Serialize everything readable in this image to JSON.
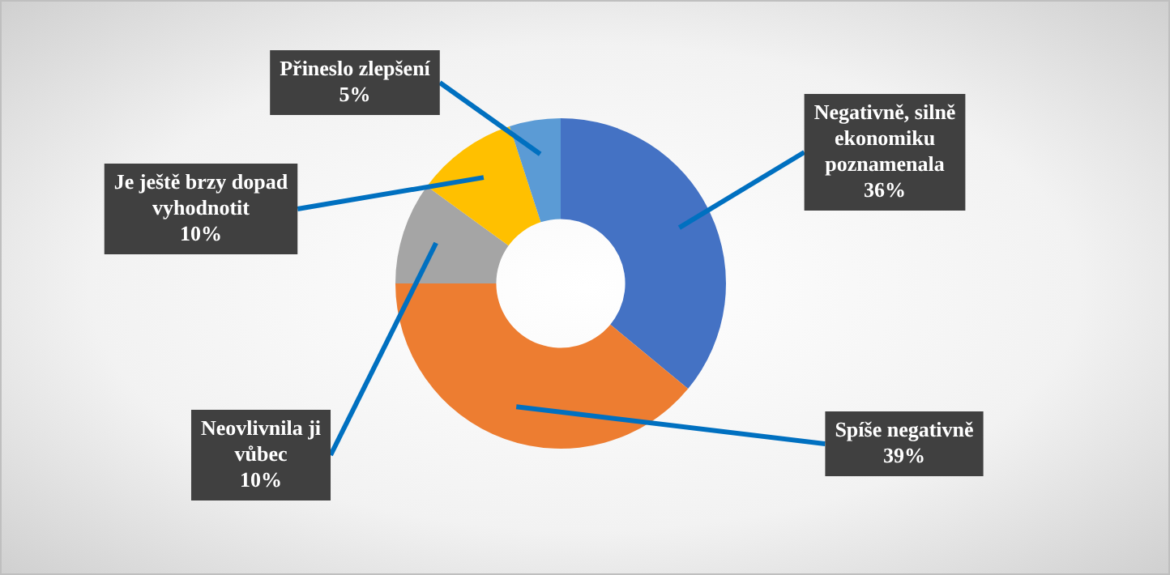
{
  "chart_data": {
    "type": "donut",
    "categories": [
      "Negativně, silně ekonomiku poznamenala",
      "Spíše negativně",
      "Neovlivnila ji vůbec",
      "Je ještě brzy dopad vyhodnotit",
      "Přineslo zlepšení"
    ],
    "values": [
      36,
      39,
      10,
      10,
      5
    ],
    "value_labels": [
      "36%",
      "39%",
      "10%",
      "10%",
      "5%"
    ],
    "colors": [
      "#4472c4",
      "#ed7d31",
      "#a5a5a5",
      "#ffc000",
      "#5b9bd5"
    ],
    "legend": false
  }
}
